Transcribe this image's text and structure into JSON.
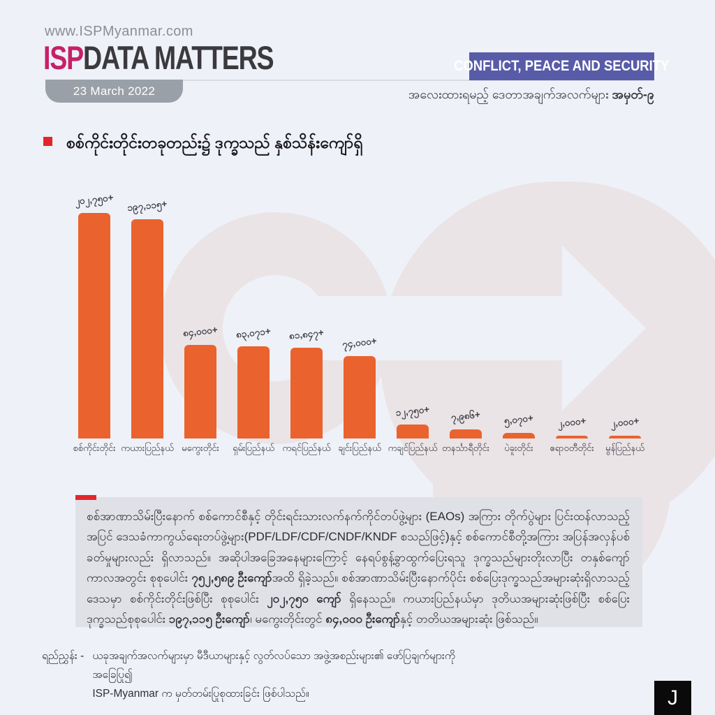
{
  "page": {
    "background": "#eff1f8"
  },
  "header": {
    "website": "www.ISPMyanmar.com",
    "brand": {
      "isp": "ISP",
      "rest": "DATA MATTERS",
      "isp_color": "#c62069",
      "rest_color": "#3a3a3e"
    },
    "date_tab": "23 March 2022",
    "category_banner": {
      "label": "CONFLICT, PEACE AND SECURITY",
      "bg": "#585ca8"
    },
    "subtitle": {
      "prefix": "အလေးထားရမည့် ဒေတာအချက်အလက်များ ",
      "issue": "အမှတ်-၉"
    }
  },
  "headline": {
    "text": "စစ်ကိုင်းတိုင်းတခုတည်း၌ ဒုက္ခသည် နှစ်သိန်းကျော်ရှိ",
    "bullet_color": "#e2262b"
  },
  "chart_data": {
    "type": "bar",
    "title": "စစ်ကိုင်းတိုင်းတခုတည်း၌ ဒုက္ခသည် နှစ်သိန်းကျော်ရှိ",
    "categories": [
      "စစ်ကိုင်းတိုင်း",
      "ကယားပြည်နယ်",
      "မကွေးတိုင်း",
      "ရှမ်းပြည်နယ်",
      "ကရင်ပြည်နယ်",
      "ချင်းပြည်နယ်",
      "ကချင်ပြည်နယ်",
      "တနင်္သာရီတိုင်း",
      "ပဲခူးတိုင်း",
      "ဧရာဝတီတိုင်း",
      "မွန်ပြည်နယ်"
    ],
    "values": [
      202750,
      197115,
      84000,
      83071,
      81847,
      74000,
      12750,
      7986,
      5070,
      2000,
      2000
    ],
    "value_labels": [
      "၂၀၂,၇၅၀+",
      "၁၉၇,၁၁၅+",
      "၈၄,၀၀၀+",
      "၈၃,၀၇၁+",
      "၈၁,၈၄၇+",
      "၇၄,၀၀၀+",
      "၁၂,၇၅၀+",
      "၇,၉၈၆+",
      "၅,၀၇၀+",
      "၂,၀၀၀+",
      "၂,၀၀၀+"
    ],
    "bar_color": "#ea622d",
    "xlabel": "",
    "ylabel": "",
    "ylim": [
      0,
      202750
    ],
    "grid": false,
    "legend": "none"
  },
  "body": {
    "accent_color": "#e2262b",
    "runs": [
      {
        "text": "စစ်အာဏာသိမ်းပြီးနောက် စစ်ကောင်စီနှင့် တိုင်းရင်းသားလက်နက်ကိုင်တပ်ဖွဲ့များ (EAOs) အကြား တိုက်ပွဲများ ပြင်းထန်လာသည့်အပြင် ဒေသခံကာကွယ်ရေးတပ်ဖွဲ့များ(PDF/LDF/CDF/CNDF/KNDF စသည်ဖြင့်)နှင့် စစ်ကောင်စီတို့အကြား အပြန်အလှန်ပစ်ခတ်မှုများလည်း ရှိလာသည်။ အဆိုပါအခြေအနေများကြောင့် နေရပ်စွန့်ခွာထွက်ပြေးရသူ ဒုက္ခသည်များတိုးလာပြီး တနှစ်ကျော်ကာလအတွင်း စုစုပေါင်း ",
        "bold": false
      },
      {
        "text": "၇၅၂,၅၈၉ ဦးကျော်",
        "bold": true
      },
      {
        "text": "အထိ ရှိခဲ့သည်။ စစ်အာဏာသိမ်းပြီးနောက်ပိုင်း စစ်ပြေးဒုက္ခသည်အများဆုံးရှိလာသည့်ဒေသမှာ စစ်ကိုင်းတိုင်းဖြစ်ပြီး စုစုပေါင်း ",
        "bold": false
      },
      {
        "text": "၂၀၂,၇၅၀ ကျော် ",
        "bold": true
      },
      {
        "text": "ရှိနေသည်။ ကယားပြည်နယ်မှာ ဒုတိယအများဆုံးဖြစ်ပြီး စစ်ပြေးဒုက္ခသည်စုစုပေါင်း ",
        "bold": false
      },
      {
        "text": "၁၉၇,၁၁၅ ဦးကျော်",
        "bold": true
      },
      {
        "text": "၊ မကွေးတိုင်းတွင် ",
        "bold": false
      },
      {
        "text": "၈၄,၀၀၀ ဦးကျော်",
        "bold": true
      },
      {
        "text": "နှင့် တတိယအများဆုံး ဖြစ်သည်။",
        "bold": false
      }
    ]
  },
  "footnote": {
    "label": "ရည်ညွှန်း -",
    "line1": "ယခုအချက်အလက်များမှာ မီဒီယာများနှင့် လွတ်လပ်သော အဖွဲ့အစည်းများ၏ ဖော်ပြချက်များကို အခြေပြု၍",
    "line2": "ISP-Myanmar က မှတ်တမ်းပြုစုထားခြင်း ဖြစ်ပါသည်။"
  },
  "corner_logo": "J"
}
